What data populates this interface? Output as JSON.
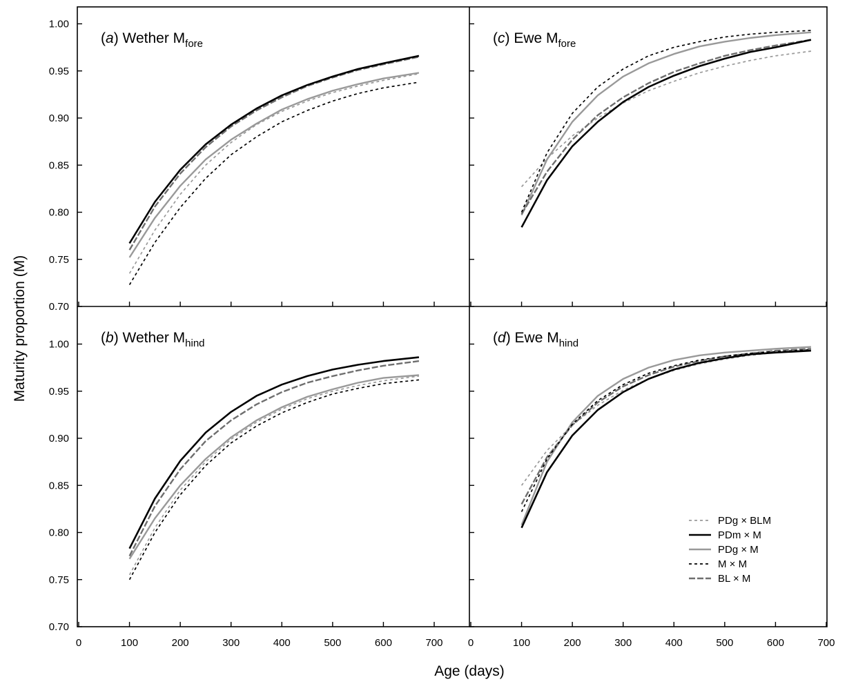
{
  "chart_data": {
    "type": "line",
    "xlabel": "Age (days)",
    "ylabel": "Maturity proportion (M)",
    "xlim": [
      0,
      700
    ],
    "ylim": [
      0.7,
      1.02
    ],
    "x_ticks": [
      0,
      100,
      200,
      300,
      400,
      500,
      600,
      700
    ],
    "x_tick_labels": [
      "0",
      "100",
      "200",
      "300",
      "400",
      "500",
      "600",
      "700"
    ],
    "y_ticks": [
      0.7,
      0.75,
      0.8,
      0.85,
      0.9,
      0.95,
      1.0
    ],
    "y_tick_labels": [
      "0.70",
      "0.75",
      "0.80",
      "0.85",
      "0.90",
      "0.95",
      "1.00"
    ],
    "grid": false,
    "legend_position": "bottom-right of panel d",
    "legend": [
      {
        "label": "PDg × BLM",
        "color": "#999999",
        "dash": "dotted"
      },
      {
        "label": "PDm × M",
        "color": "#000000",
        "dash": "solid"
      },
      {
        "label": "PDg × M",
        "color": "#999999",
        "dash": "solid"
      },
      {
        "label": "M × M",
        "color": "#000000",
        "dash": "dotted"
      },
      {
        "label": "BL × M",
        "color": "#6e6e6e",
        "dash": "dashed"
      }
    ],
    "x": [
      100,
      150,
      200,
      250,
      300,
      350,
      400,
      450,
      500,
      550,
      600,
      670
    ],
    "panels": [
      {
        "id": "a",
        "letter": "a",
        "title_main": "Wether M",
        "title_sub": "fore",
        "series": [
          {
            "label": "PDg × BLM",
            "values": [
              0.735,
              0.781,
              0.819,
              0.85,
              0.874,
              0.893,
              0.907,
              0.918,
              0.927,
              0.934,
              0.94,
              0.947
            ]
          },
          {
            "label": "PDm × M",
            "values": [
              0.767,
              0.811,
              0.845,
              0.872,
              0.893,
              0.91,
              0.924,
              0.935,
              0.944,
              0.952,
              0.958,
              0.966
            ]
          },
          {
            "label": "PDg × M",
            "values": [
              0.752,
              0.794,
              0.828,
              0.856,
              0.877,
              0.894,
              0.909,
              0.92,
              0.929,
              0.936,
              0.942,
              0.948
            ]
          },
          {
            "label": "M × M",
            "values": [
              0.723,
              0.768,
              0.805,
              0.836,
              0.861,
              0.88,
              0.896,
              0.908,
              0.918,
              0.926,
              0.932,
              0.938
            ]
          },
          {
            "label": "BL × M",
            "values": [
              0.76,
              0.806,
              0.841,
              0.869,
              0.891,
              0.908,
              0.922,
              0.934,
              0.943,
              0.951,
              0.957,
              0.965
            ]
          }
        ]
      },
      {
        "id": "c",
        "letter": "c",
        "title_main": "Ewe M",
        "title_sub": "fore",
        "series": [
          {
            "label": "PDg × BLM",
            "values": [
              0.827,
              0.857,
              0.881,
              0.9,
              0.916,
              0.929,
              0.939,
              0.948,
              0.955,
              0.961,
              0.966,
              0.971
            ]
          },
          {
            "label": "PDm × M",
            "values": [
              0.784,
              0.834,
              0.87,
              0.896,
              0.917,
              0.933,
              0.945,
              0.955,
              0.963,
              0.97,
              0.975,
              0.983
            ]
          },
          {
            "label": "PDg × M",
            "values": [
              0.797,
              0.856,
              0.896,
              0.924,
              0.944,
              0.958,
              0.968,
              0.976,
              0.981,
              0.985,
              0.988,
              0.991
            ]
          },
          {
            "label": "M × M",
            "values": [
              0.8,
              0.863,
              0.905,
              0.933,
              0.952,
              0.966,
              0.975,
              0.981,
              0.986,
              0.989,
              0.991,
              0.993
            ]
          },
          {
            "label": "BL × M",
            "values": [
              0.798,
              0.843,
              0.877,
              0.903,
              0.922,
              0.937,
              0.949,
              0.958,
              0.966,
              0.972,
              0.977,
              0.983
            ]
          }
        ]
      },
      {
        "id": "b",
        "letter": "b",
        "title_main": "Wether M",
        "title_sub": "hind",
        "series": [
          {
            "label": "PDg × BLM",
            "values": [
              0.755,
              0.805,
              0.845,
              0.875,
              0.899,
              0.917,
              0.931,
              0.942,
              0.95,
              0.956,
              0.961,
              0.966
            ]
          },
          {
            "label": "PDm × M",
            "values": [
              0.783,
              0.836,
              0.876,
              0.906,
              0.928,
              0.945,
              0.957,
              0.966,
              0.973,
              0.978,
              0.982,
              0.986
            ]
          },
          {
            "label": "PDg × M",
            "values": [
              0.772,
              0.815,
              0.85,
              0.878,
              0.901,
              0.919,
              0.933,
              0.944,
              0.952,
              0.959,
              0.964,
              0.967
            ]
          },
          {
            "label": "M × M",
            "values": [
              0.75,
              0.8,
              0.84,
              0.871,
              0.895,
              0.913,
              0.927,
              0.938,
              0.947,
              0.953,
              0.958,
              0.962
            ]
          },
          {
            "label": "BL × M",
            "values": [
              0.775,
              0.828,
              0.867,
              0.897,
              0.919,
              0.936,
              0.949,
              0.959,
              0.966,
              0.972,
              0.977,
              0.982
            ]
          }
        ]
      },
      {
        "id": "d",
        "letter": "d",
        "title_main": "Ewe M",
        "title_sub": "hind",
        "series": [
          {
            "label": "PDg × BLM",
            "values": [
              0.85,
              0.887,
              0.914,
              0.935,
              0.951,
              0.963,
              0.972,
              0.979,
              0.984,
              0.988,
              0.991,
              0.994
            ]
          },
          {
            "label": "PDm × M",
            "values": [
              0.805,
              0.864,
              0.903,
              0.93,
              0.949,
              0.963,
              0.973,
              0.98,
              0.985,
              0.989,
              0.991,
              0.993
            ]
          },
          {
            "label": "PDg × M",
            "values": [
              0.808,
              0.875,
              0.917,
              0.945,
              0.963,
              0.975,
              0.983,
              0.988,
              0.991,
              0.993,
              0.995,
              0.997
            ]
          },
          {
            "label": "M × M",
            "values": [
              0.822,
              0.878,
              0.915,
              0.94,
              0.957,
              0.969,
              0.977,
              0.983,
              0.987,
              0.99,
              0.992,
              0.994
            ]
          },
          {
            "label": "BL × M",
            "values": [
              0.83,
              0.88,
              0.914,
              0.938,
              0.955,
              0.967,
              0.976,
              0.982,
              0.987,
              0.99,
              0.993,
              0.995
            ]
          }
        ]
      }
    ]
  }
}
